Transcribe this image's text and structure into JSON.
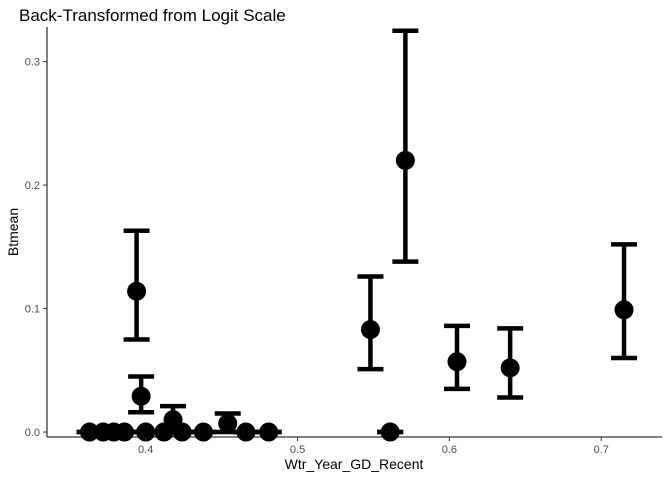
{
  "chart_data": {
    "type": "scatter",
    "title": "Back-Transformed from Logit Scale",
    "xlabel": "Wtr_Year_GD_Recent",
    "ylabel": "Btmean",
    "xlim": [
      0.335,
      0.74
    ],
    "ylim": [
      -0.004,
      0.328
    ],
    "x_ticks": [
      0.4,
      0.5,
      0.6,
      0.7
    ],
    "x_tick_labels": [
      "0.4",
      "0.5",
      "0.6",
      "0.7"
    ],
    "y_ticks": [
      0.0,
      0.1,
      0.2,
      0.3
    ],
    "y_tick_labels": [
      "0.0",
      "0.1",
      "0.2",
      "0.3"
    ],
    "grid": false,
    "legend": "none",
    "points": [
      {
        "x": 0.363,
        "y": 0.0,
        "lower": 0.0,
        "upper": 0.0
      },
      {
        "x": 0.372,
        "y": 0.0,
        "lower": 0.0,
        "upper": 0.0
      },
      {
        "x": 0.379,
        "y": 0.0,
        "lower": 0.0,
        "upper": 0.0
      },
      {
        "x": 0.386,
        "y": 0.0,
        "lower": 0.0,
        "upper": 0.0
      },
      {
        "x": 0.394,
        "y": 0.114,
        "lower": 0.075,
        "upper": 0.163
      },
      {
        "x": 0.397,
        "y": 0.029,
        "lower": 0.016,
        "upper": 0.045
      },
      {
        "x": 0.4,
        "y": 0.0,
        "lower": 0.0,
        "upper": 0.0
      },
      {
        "x": 0.412,
        "y": 0.0,
        "lower": 0.0,
        "upper": 0.0
      },
      {
        "x": 0.418,
        "y": 0.01,
        "lower": 0.003,
        "upper": 0.021
      },
      {
        "x": 0.424,
        "y": 0.0,
        "lower": 0.0,
        "upper": 0.0
      },
      {
        "x": 0.438,
        "y": 0.0,
        "lower": 0.0,
        "upper": 0.0
      },
      {
        "x": 0.454,
        "y": 0.007,
        "lower": 0.0,
        "upper": 0.015
      },
      {
        "x": 0.466,
        "y": 0.0,
        "lower": 0.0,
        "upper": 0.0
      },
      {
        "x": 0.481,
        "y": 0.0,
        "lower": 0.0,
        "upper": 0.0
      },
      {
        "x": 0.548,
        "y": 0.083,
        "lower": 0.051,
        "upper": 0.126
      },
      {
        "x": 0.561,
        "y": 0.0,
        "lower": 0.0,
        "upper": 0.0
      },
      {
        "x": 0.571,
        "y": 0.22,
        "lower": 0.138,
        "upper": 0.325
      },
      {
        "x": 0.605,
        "y": 0.057,
        "lower": 0.035,
        "upper": 0.086
      },
      {
        "x": 0.64,
        "y": 0.052,
        "lower": 0.028,
        "upper": 0.084
      },
      {
        "x": 0.715,
        "y": 0.099,
        "lower": 0.06,
        "upper": 0.152
      }
    ]
  }
}
